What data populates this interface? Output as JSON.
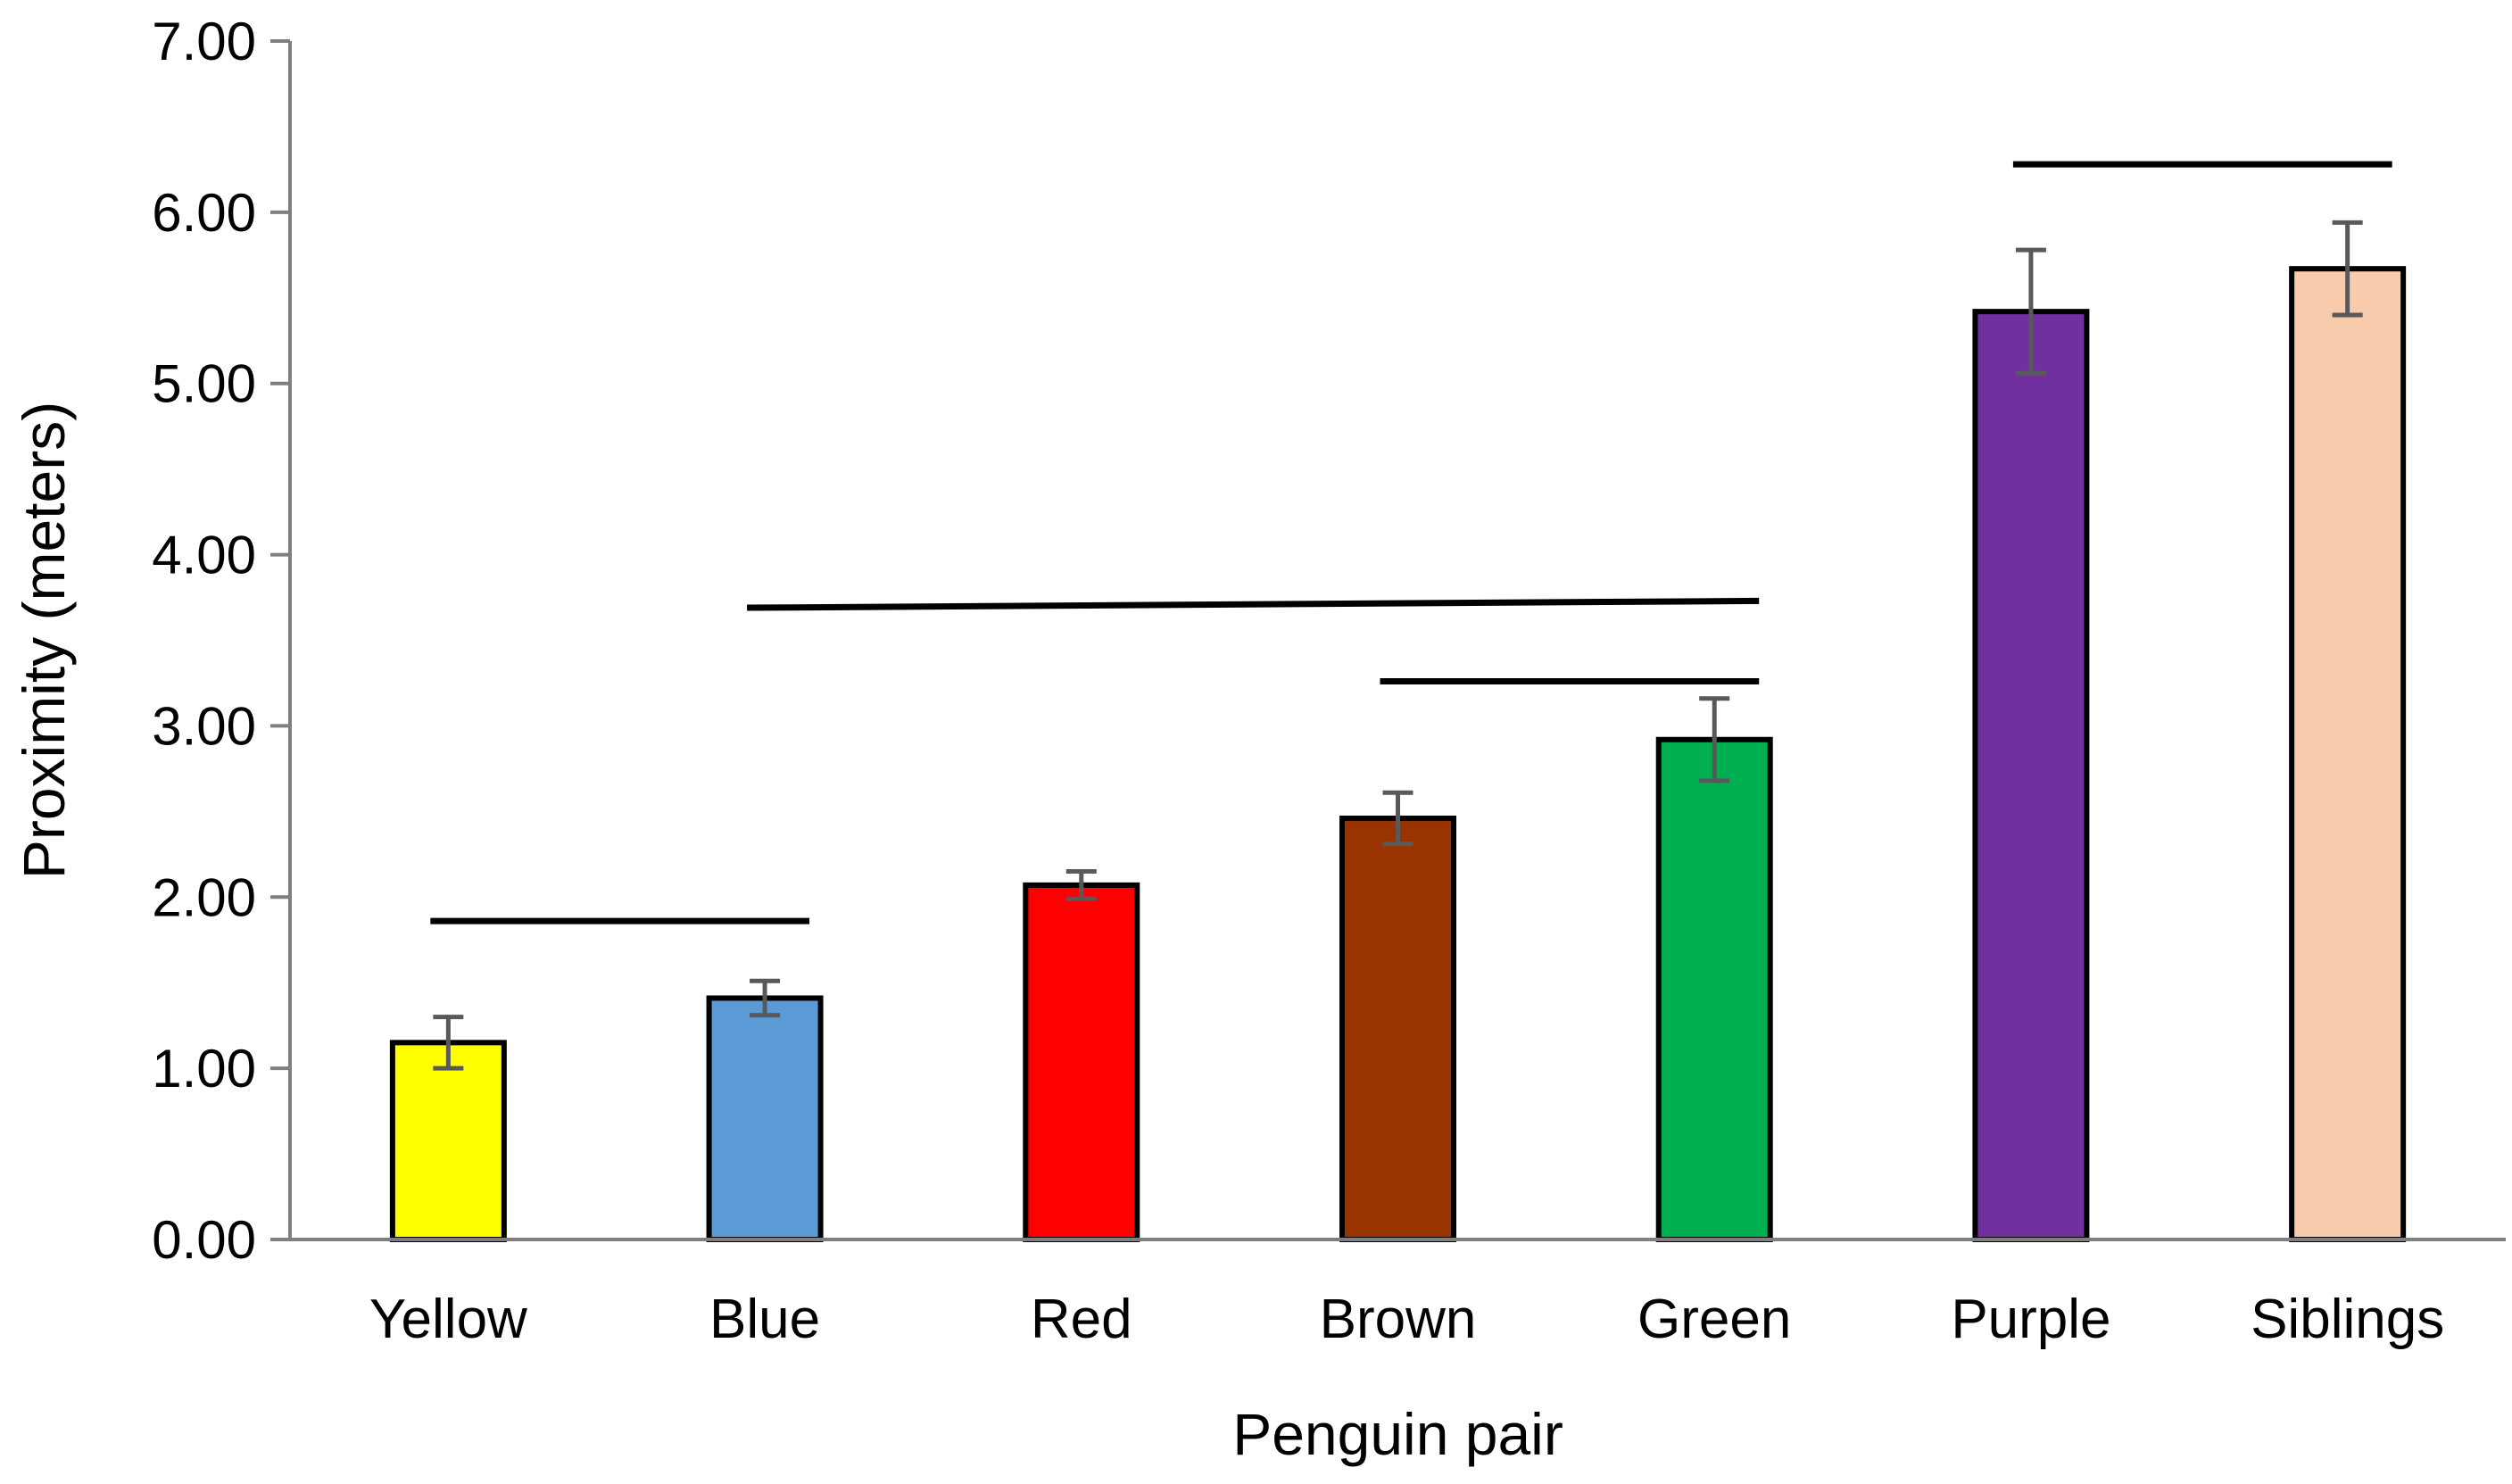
{
  "chart_data": {
    "type": "bar",
    "title": "",
    "xlabel": "Penguin pair",
    "ylabel": "Proximity (meters)",
    "ylim": [
      0,
      7
    ],
    "yticks": [
      "0.00",
      "1.00",
      "2.00",
      "3.00",
      "4.00",
      "5.00",
      "6.00",
      "7.00"
    ],
    "categories": [
      "Yellow",
      "Blue",
      "Red",
      "Brown",
      "Green",
      "Purple",
      "Siblings"
    ],
    "values": [
      1.15,
      1.41,
      2.07,
      2.46,
      2.92,
      5.42,
      5.67
    ],
    "error": [
      0.15,
      0.1,
      0.08,
      0.15,
      0.24,
      0.36,
      0.27
    ],
    "colors": [
      "#FFFF00",
      "#5B9BD5",
      "#FF0000",
      "#993300",
      "#00B050",
      "#7030A0",
      "#F8CBAD"
    ],
    "grid": false,
    "legend": "none",
    "significance_brackets": [
      {
        "from": "Yellow",
        "to": "Blue",
        "y": 1.86
      },
      {
        "from": "Blue",
        "to": "Green",
        "y_start": 3.69,
        "y_end": 3.73
      },
      {
        "from": "Brown",
        "to": "Green",
        "y": 3.26
      },
      {
        "from": "Purple",
        "to": "Siblings",
        "y": 6.28
      }
    ]
  }
}
